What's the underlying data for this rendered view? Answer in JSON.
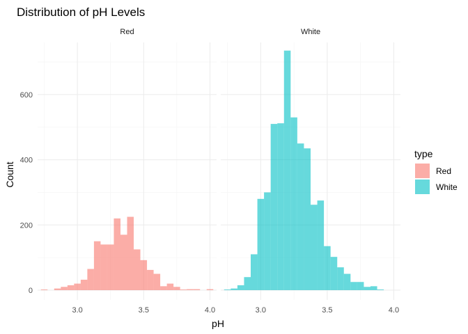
{
  "chart_data": {
    "type": "bar",
    "title": "Distribution of pH Levels",
    "xlabel": "pH",
    "ylabel": "Count",
    "xlim": [
      2.7,
      4.05
    ],
    "ylim": [
      -30,
      760
    ],
    "x_ticks": [
      3.0,
      3.5,
      4.0
    ],
    "x_tick_labels": [
      "3.0",
      "3.5",
      "4.0"
    ],
    "y_ticks": [
      0,
      200,
      400,
      600
    ],
    "y_tick_labels": [
      "0",
      "200",
      "400",
      "600"
    ],
    "grid": true,
    "bin_width": 0.05,
    "legend": {
      "title": "type",
      "position": "right",
      "entries": [
        {
          "label": "Red",
          "color": "#F8766D"
        },
        {
          "label": "White",
          "color": "#00BFC4"
        }
      ]
    },
    "facets": [
      {
        "strip": "Red",
        "color": "#F8766D",
        "bins": [
          {
            "x": 2.75,
            "count": 2
          },
          {
            "x": 2.8,
            "count": 0
          },
          {
            "x": 2.85,
            "count": 5
          },
          {
            "x": 2.9,
            "count": 10
          },
          {
            "x": 2.95,
            "count": 15
          },
          {
            "x": 3.0,
            "count": 20
          },
          {
            "x": 3.05,
            "count": 32
          },
          {
            "x": 3.1,
            "count": 65
          },
          {
            "x": 3.15,
            "count": 150
          },
          {
            "x": 3.2,
            "count": 140
          },
          {
            "x": 3.25,
            "count": 140
          },
          {
            "x": 3.3,
            "count": 220
          },
          {
            "x": 3.35,
            "count": 170
          },
          {
            "x": 3.4,
            "count": 225
          },
          {
            "x": 3.45,
            "count": 125
          },
          {
            "x": 3.5,
            "count": 92
          },
          {
            "x": 3.55,
            "count": 62
          },
          {
            "x": 3.6,
            "count": 50
          },
          {
            "x": 3.65,
            "count": 12
          },
          {
            "x": 3.7,
            "count": 20
          },
          {
            "x": 3.75,
            "count": 10
          },
          {
            "x": 3.8,
            "count": 2
          },
          {
            "x": 3.85,
            "count": 3
          },
          {
            "x": 3.9,
            "count": 3
          },
          {
            "x": 3.95,
            "count": 0
          },
          {
            "x": 4.0,
            "count": 3
          }
        ]
      },
      {
        "strip": "White",
        "color": "#00BFC4",
        "bins": [
          {
            "x": 2.75,
            "count": 2
          },
          {
            "x": 2.8,
            "count": 5
          },
          {
            "x": 2.85,
            "count": 15
          },
          {
            "x": 2.9,
            "count": 40
          },
          {
            "x": 2.95,
            "count": 110
          },
          {
            "x": 3.0,
            "count": 280
          },
          {
            "x": 3.05,
            "count": 300
          },
          {
            "x": 3.1,
            "count": 510
          },
          {
            "x": 3.15,
            "count": 512
          },
          {
            "x": 3.2,
            "count": 735
          },
          {
            "x": 3.25,
            "count": 530
          },
          {
            "x": 3.3,
            "count": 450
          },
          {
            "x": 3.35,
            "count": 435
          },
          {
            "x": 3.4,
            "count": 262
          },
          {
            "x": 3.45,
            "count": 275
          },
          {
            "x": 3.5,
            "count": 135
          },
          {
            "x": 3.55,
            "count": 102
          },
          {
            "x": 3.6,
            "count": 70
          },
          {
            "x": 3.65,
            "count": 50
          },
          {
            "x": 3.7,
            "count": 25
          },
          {
            "x": 3.75,
            "count": 25
          },
          {
            "x": 3.8,
            "count": 10
          },
          {
            "x": 3.85,
            "count": 12
          },
          {
            "x": 3.9,
            "count": 2
          }
        ]
      }
    ]
  }
}
